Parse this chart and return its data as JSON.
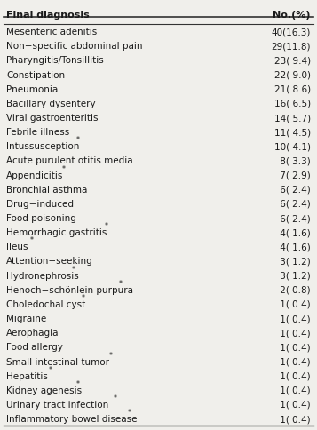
{
  "header": [
    "Final diagnosis",
    "No.(%)"
  ],
  "rows": [
    [
      "Mesenteric adenitis",
      "40(16.3)"
    ],
    [
      "Non−specific abdominal pain",
      "29(11.8)"
    ],
    [
      "Pharyngitis/Tonsillitis",
      "23( 9.4)"
    ],
    [
      "Constipation",
      "22( 9.0)"
    ],
    [
      "Pneumonia",
      "21( 8.6)"
    ],
    [
      "Bacillary dysentery",
      "16( 6.5)"
    ],
    [
      "Viral gastroenteritis",
      "14( 5.7)"
    ],
    [
      "Febrile illness",
      "11( 4.5)"
    ],
    [
      "Intussusception*",
      "10( 4.1)"
    ],
    [
      "Acute purulent otitis media",
      " 8( 3.3)"
    ],
    [
      "Appendicitis*",
      " 7( 2.9)"
    ],
    [
      "Bronchial asthma",
      " 6( 2.4)"
    ],
    [
      "Drug−induced",
      " 6( 2.4)"
    ],
    [
      "Food poisoning",
      " 6( 2.4)"
    ],
    [
      "Hemorrhagic gastritis*",
      " 4( 1.6)"
    ],
    [
      "Ileus*",
      " 4( 1.6)"
    ],
    [
      "Attention−seeking",
      " 3( 1.2)"
    ],
    [
      "Hydronephrosis*",
      " 3( 1.2)"
    ],
    [
      "Henoch−schönlein purpura*",
      " 2( 0.8)"
    ],
    [
      "Choledochal cyst*",
      " 1( 0.4)"
    ],
    [
      "Migraine",
      " 1( 0.4)"
    ],
    [
      "Aerophagia",
      " 1( 0.4)"
    ],
    [
      "Food allergy",
      " 1( 0.4)"
    ],
    [
      "Small intestinal tumor*",
      " 1( 0.4)"
    ],
    [
      "Hepatitis*",
      " 1( 0.4)"
    ],
    [
      "Kidney agenesis*",
      " 1( 0.4)"
    ],
    [
      "Urinary tract infection*",
      " 1( 0.4)"
    ],
    [
      "Inflammatory bowel disease*",
      " 1( 0.4)"
    ]
  ],
  "fig_width": 3.57,
  "fig_height": 4.85,
  "dpi": 100,
  "font_size": 7.5,
  "header_font_size": 8.0,
  "bg_color": "#f0efeb",
  "text_color": "#1a1a1a",
  "line_color": "#333333"
}
